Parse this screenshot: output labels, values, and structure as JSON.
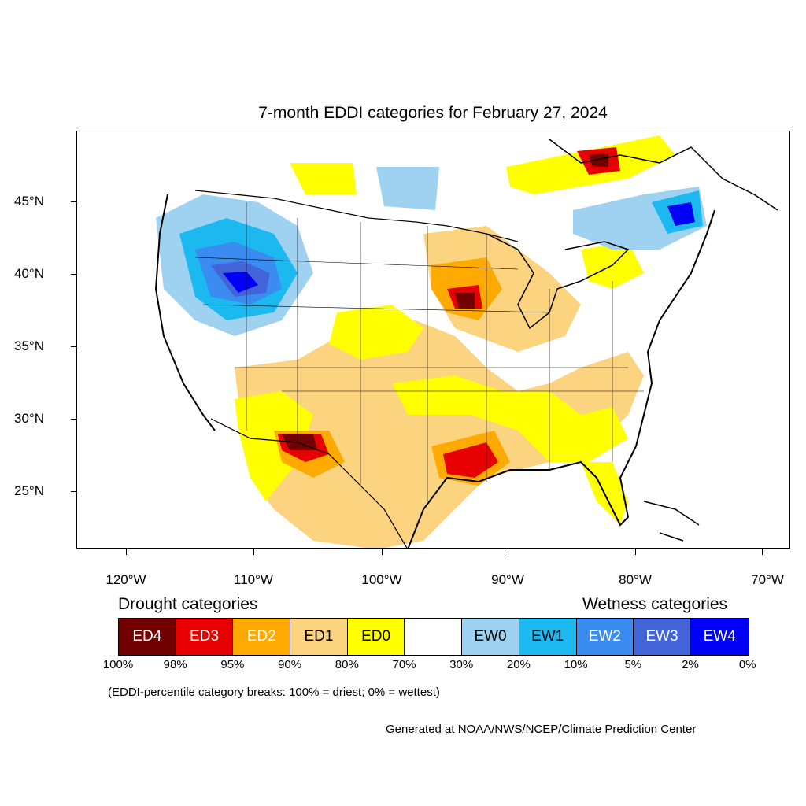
{
  "title": "7-month EDDI categories for February 27, 2024",
  "map": {
    "lat_labels": [
      "45°N",
      "40°N",
      "35°N",
      "30°N",
      "25°N"
    ],
    "lon_labels": [
      "120°W",
      "110°W",
      "100°W",
      "90°W",
      "80°W",
      "70°W"
    ]
  },
  "legend": {
    "drought_heading": "Drought categories",
    "wetness_heading": "Wetness categories",
    "categories": [
      {
        "label": "ED4",
        "color": "#730000",
        "text_color": "#ffffff"
      },
      {
        "label": "ED3",
        "color": "#e60000",
        "text_color": "#ffffff"
      },
      {
        "label": "ED2",
        "color": "#ffaa00",
        "text_color": "#ffffff"
      },
      {
        "label": "ED1",
        "color": "#fcd37f",
        "text_color": "#000000"
      },
      {
        "label": "ED0",
        "color": "#ffff00",
        "text_color": "#000000"
      },
      {
        "label": "",
        "color": "#ffffff",
        "text_color": "#000000"
      },
      {
        "label": "EW0",
        "color": "#9fd2f0",
        "text_color": "#000000"
      },
      {
        "label": "EW1",
        "color": "#1cb8f0",
        "text_color": "#000000"
      },
      {
        "label": "EW2",
        "color": "#3a8cf0",
        "text_color": "#ffffff"
      },
      {
        "label": "EW3",
        "color": "#4363d8",
        "text_color": "#ffffff"
      },
      {
        "label": "EW4",
        "color": "#0000f5",
        "text_color": "#ffffff"
      }
    ],
    "percent_breaks": [
      "100%",
      "98%",
      "95%",
      "90%",
      "80%",
      "70%",
      "30%",
      "20%",
      "10%",
      "5%",
      "2%",
      "0%"
    ]
  },
  "note": "(EDDI-percentile category breaks: 100% = driest; 0% = wettest)",
  "credit": "Generated at NOAA/NWS/NCEP/Climate Prediction Center"
}
